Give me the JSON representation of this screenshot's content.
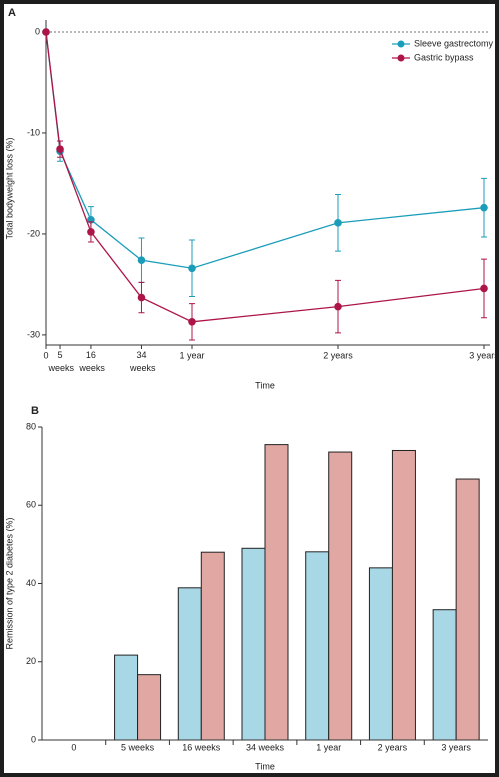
{
  "chart_data": [
    {
      "type": "line",
      "panel": "A",
      "ylabel": "Total bodyweight loss (%)",
      "xlabel": "Time",
      "x": [
        0,
        5,
        16,
        34,
        52,
        104,
        156
      ],
      "xlim": [
        0,
        156
      ],
      "xticks": [
        0,
        {
          "value": 5,
          "label": "5 weeks"
        },
        {
          "value": 16,
          "label": "16 weeks"
        },
        {
          "value": 34,
          "label": "34 weeks"
        },
        {
          "value": 52,
          "label": "1 year"
        },
        {
          "value": 104,
          "label": "2 years"
        },
        {
          "value": 156,
          "label": "3 years"
        }
      ],
      "ylim": [
        -31,
        0
      ],
      "yticks": [
        0,
        -10,
        -20,
        -30
      ],
      "zero_line": true,
      "legend": "top-right",
      "series": [
        {
          "name": "Sleeve gastrectomy",
          "color": "#1b9dba",
          "values": [
            0,
            -11.8,
            -18.6,
            -22.6,
            -23.4,
            -18.9,
            -17.4
          ],
          "errors": [
            0,
            1.0,
            1.3,
            2.2,
            2.8,
            2.8,
            2.9
          ]
        },
        {
          "name": "Gastric bypass",
          "color": "#ad1548",
          "values": [
            0,
            -11.6,
            -19.8,
            -26.3,
            -28.7,
            -27.2,
            -25.4
          ],
          "errors": [
            0,
            0.8,
            1.0,
            1.5,
            1.8,
            2.6,
            2.9
          ]
        }
      ]
    },
    {
      "type": "bar",
      "panel": "B",
      "ylabel": "Remission of type 2 diabetes (%)",
      "xlabel": "Time",
      "categories": [
        "0",
        "5 weeks",
        "16 weeks",
        "34 weeks",
        "1 year",
        "2 years",
        "3 years"
      ],
      "ylim": [
        0,
        80
      ],
      "yticks": [
        0,
        20,
        40,
        60,
        80
      ],
      "series": [
        {
          "color": "#a8d8e6",
          "values": [
            0,
            21.7,
            38.9,
            49.0,
            48.1,
            44.0,
            33.3
          ]
        },
        {
          "color": "#e1a7a3",
          "values": [
            0,
            16.7,
            48.0,
            75.5,
            73.6,
            74.0,
            66.7
          ]
        }
      ]
    }
  ]
}
